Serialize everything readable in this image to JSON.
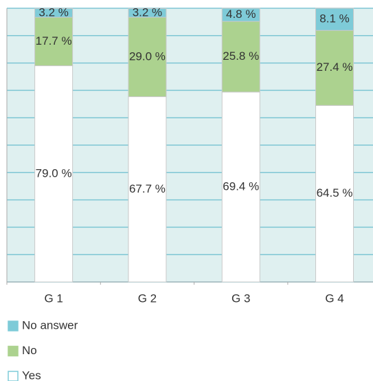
{
  "chart_data": {
    "type": "stacked_bar",
    "categories": [
      "G 1",
      "G 2",
      "G 3",
      "G 4"
    ],
    "series": [
      {
        "name": "Yes",
        "color": "#ffffff",
        "values": [
          79.0,
          67.7,
          69.4,
          64.5
        ],
        "value_labels": [
          "79.0 %",
          "67.7 %",
          "69.4 %",
          "64.5 %"
        ]
      },
      {
        "name": "No",
        "color": "#acd28f",
        "values": [
          17.7,
          29.0,
          25.8,
          27.4
        ],
        "value_labels": [
          "17.7 %",
          "29.0 %",
          "25.8 %",
          "27.4 %"
        ]
      },
      {
        "name": "No answer",
        "color": "#7ecbd8",
        "values": [
          3.2,
          3.2,
          4.8,
          8.1
        ],
        "value_labels": [
          "3.2 %",
          "3.2 %",
          "4.8 %",
          "8.1 %"
        ]
      }
    ],
    "ylim": [
      0,
      100
    ],
    "yticks": [
      0,
      10,
      20,
      30,
      40,
      50,
      60,
      70,
      80,
      90,
      100
    ],
    "grid": true
  }
}
